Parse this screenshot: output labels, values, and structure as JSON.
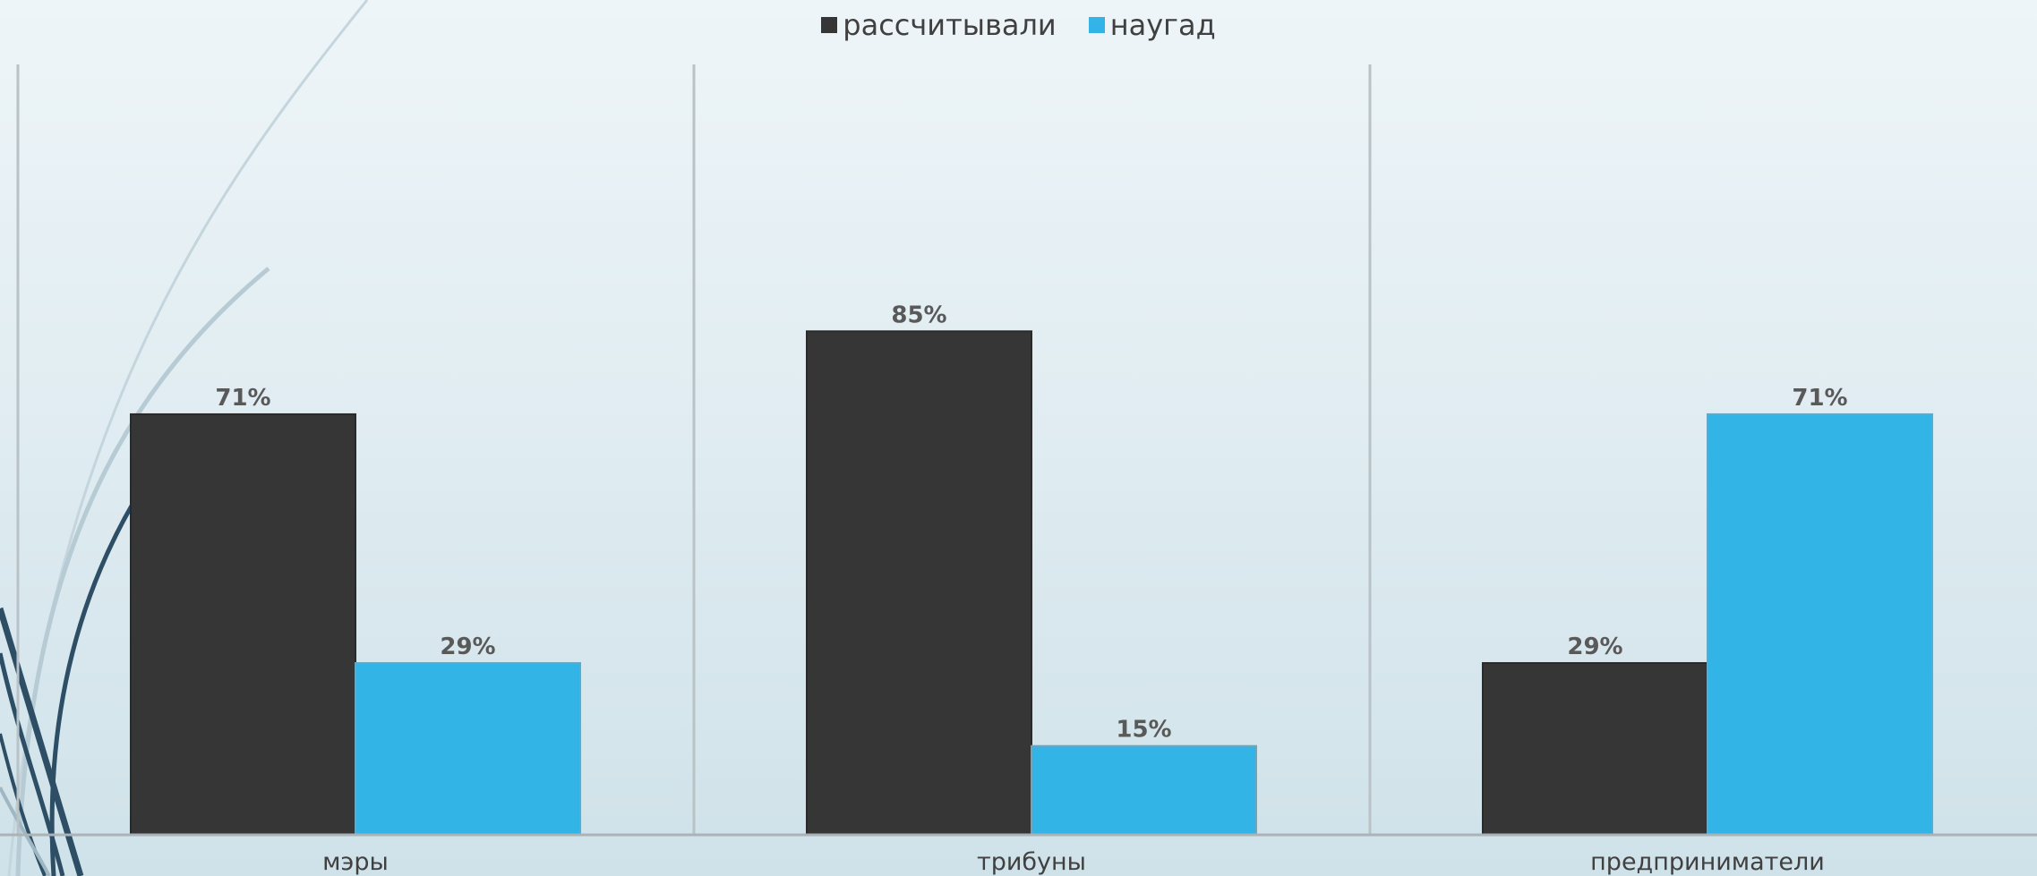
{
  "chart_data": {
    "type": "bar",
    "title": "",
    "xlabel": "",
    "ylabel": "",
    "ylim": [
      0,
      90
    ],
    "legend_position": "top",
    "grid": false,
    "categories": [
      "мэры",
      "трибуны",
      "предприниматели"
    ],
    "series": [
      {
        "name": "рассчитывали",
        "color": "#363636",
        "values": [
          71,
          85,
          29
        ],
        "labels": [
          "71%",
          "85%",
          "29%"
        ]
      },
      {
        "name": "наугад",
        "color": "#32b4e6",
        "values": [
          29,
          15,
          71
        ],
        "labels": [
          "29%",
          "15%",
          "71%"
        ]
      }
    ]
  }
}
